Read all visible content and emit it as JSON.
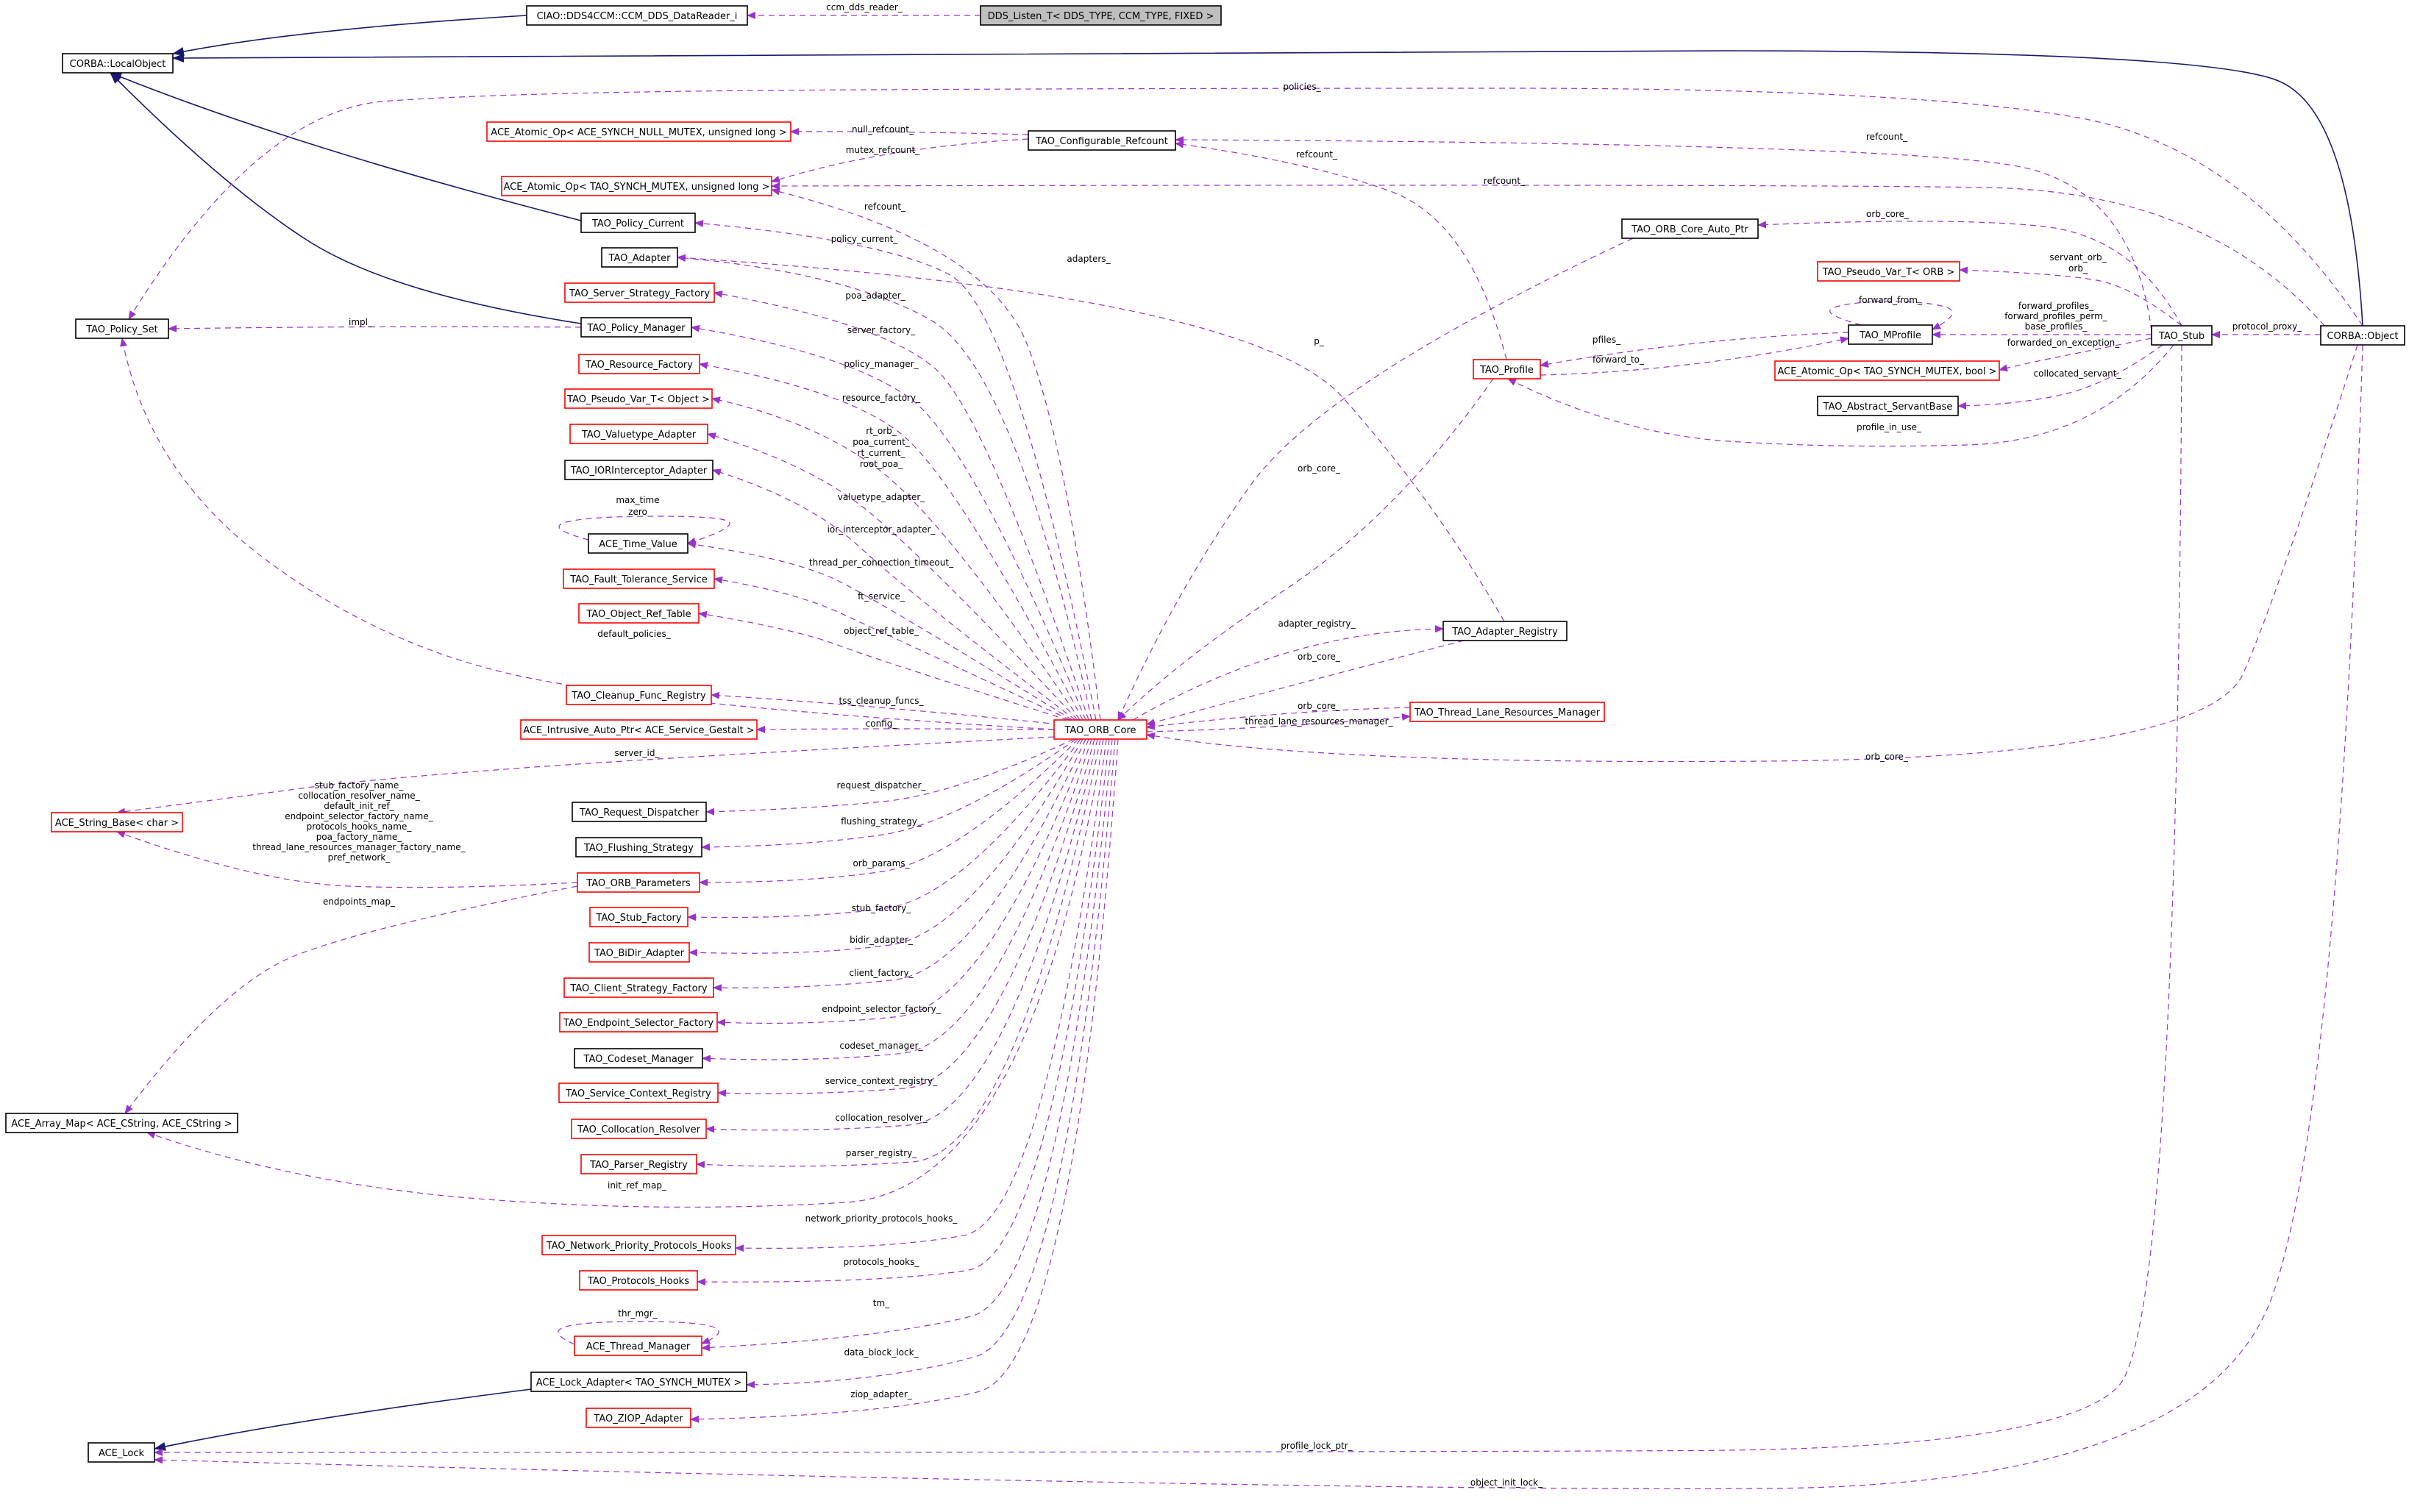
{
  "diagram": {
    "colors": {
      "usage_edge": "#9a32cd",
      "inheritance_edge": "#191970",
      "documented_border": "#000000",
      "undocumented_border": "#ff0000",
      "focus_fill": "#bfbfbf"
    },
    "nodes": [
      {
        "id": "dds_listen",
        "label": "DDS_Listen_T< DDS_TYPE, CCM_TYPE, FIXED >",
        "style": "focus"
      },
      {
        "id": "ciao_reader",
        "label": "CIAO::DDS4CCM::CCM_DDS_DataReader_i",
        "style": "black"
      },
      {
        "id": "local_object",
        "label": "CORBA::LocalObject",
        "style": "black"
      },
      {
        "id": "atomic_null",
        "label": "ACE_Atomic_Op< ACE_SYNCH_NULL_MUTEX, unsigned long >",
        "style": "red"
      },
      {
        "id": "configurable_refcount",
        "label": "TAO_Configurable_Refcount",
        "style": "black"
      },
      {
        "id": "atomic_mutex",
        "label": "ACE_Atomic_Op< TAO_SYNCH_MUTEX, unsigned long >",
        "style": "red"
      },
      {
        "id": "policy_current",
        "label": "TAO_Policy_Current",
        "style": "black"
      },
      {
        "id": "adapter",
        "label": "TAO_Adapter",
        "style": "black"
      },
      {
        "id": "server_strategy_factory",
        "label": "TAO_Server_Strategy_Factory",
        "style": "red"
      },
      {
        "id": "policy_set",
        "label": "TAO_Policy_Set",
        "style": "black"
      },
      {
        "id": "policy_manager",
        "label": "TAO_Policy_Manager",
        "style": "black"
      },
      {
        "id": "resource_factory",
        "label": "TAO_Resource_Factory",
        "style": "red"
      },
      {
        "id": "pseudo_var_object",
        "label": "TAO_Pseudo_Var_T< Object >",
        "style": "red"
      },
      {
        "id": "valuetype_adapter",
        "label": "TAO_Valuetype_Adapter",
        "style": "red"
      },
      {
        "id": "ior_interceptor_adapter",
        "label": "TAO_IORInterceptor_Adapter",
        "style": "black"
      },
      {
        "id": "time_value",
        "label": "ACE_Time_Value",
        "style": "black"
      },
      {
        "id": "fault_tolerance",
        "label": "TAO_Fault_Tolerance_Service",
        "style": "red"
      },
      {
        "id": "object_ref_table",
        "label": "TAO_Object_Ref_Table",
        "style": "red"
      },
      {
        "id": "cleanup_func_registry",
        "label": "TAO_Cleanup_Func_Registry",
        "style": "red"
      },
      {
        "id": "intrusive_auto_ptr",
        "label": "ACE_Intrusive_Auto_Ptr< ACE_Service_Gestalt >",
        "style": "red"
      },
      {
        "id": "orb_core",
        "label": "TAO_ORB_Core",
        "style": "red"
      },
      {
        "id": "string_base",
        "label": "ACE_String_Base< char >",
        "style": "red"
      },
      {
        "id": "request_dispatcher",
        "label": "TAO_Request_Dispatcher",
        "style": "black"
      },
      {
        "id": "flushing_strategy",
        "label": "TAO_Flushing_Strategy",
        "style": "black"
      },
      {
        "id": "orb_parameters",
        "label": "TAO_ORB_Parameters",
        "style": "red"
      },
      {
        "id": "stub_factory",
        "label": "TAO_Stub_Factory",
        "style": "red"
      },
      {
        "id": "bidir_adapter",
        "label": "TAO_BiDir_Adapter",
        "style": "red"
      },
      {
        "id": "client_strategy_factory",
        "label": "TAO_Client_Strategy_Factory",
        "style": "red"
      },
      {
        "id": "endpoint_selector_factory",
        "label": "TAO_Endpoint_Selector_Factory",
        "style": "red"
      },
      {
        "id": "codeset_manager",
        "label": "TAO_Codeset_Manager",
        "style": "black"
      },
      {
        "id": "service_context_registry",
        "label": "TAO_Service_Context_Registry",
        "style": "red"
      },
      {
        "id": "collocation_resolver",
        "label": "TAO_Collocation_Resolver",
        "style": "red"
      },
      {
        "id": "array_map",
        "label": "ACE_Array_Map< ACE_CString, ACE_CString >",
        "style": "black"
      },
      {
        "id": "parser_registry",
        "label": "TAO_Parser_Registry",
        "style": "red"
      },
      {
        "id": "network_priority_hooks",
        "label": "TAO_Network_Priority_Protocols_Hooks",
        "style": "red"
      },
      {
        "id": "protocols_hooks",
        "label": "TAO_Protocols_Hooks",
        "style": "red"
      },
      {
        "id": "thread_manager",
        "label": "ACE_Thread_Manager",
        "style": "red"
      },
      {
        "id": "lock_adapter",
        "label": "ACE_Lock_Adapter< TAO_SYNCH_MUTEX >",
        "style": "black"
      },
      {
        "id": "ziop_adapter",
        "label": "TAO_ZIOP_Adapter",
        "style": "red"
      },
      {
        "id": "ace_lock",
        "label": "ACE_Lock",
        "style": "black"
      },
      {
        "id": "orb_core_auto_ptr",
        "label": "TAO_ORB_Core_Auto_Ptr",
        "style": "black"
      },
      {
        "id": "pseudo_var_orb",
        "label": "TAO_Pseudo_Var_T< ORB >",
        "style": "red"
      },
      {
        "id": "mprofile",
        "label": "TAO_MProfile",
        "style": "black"
      },
      {
        "id": "profile",
        "label": "TAO_Profile",
        "style": "red"
      },
      {
        "id": "atomic_bool",
        "label": "ACE_Atomic_Op< TAO_SYNCH_MUTEX, bool >",
        "style": "red"
      },
      {
        "id": "abstract_servant_base",
        "label": "TAO_Abstract_ServantBase",
        "style": "black"
      },
      {
        "id": "stub",
        "label": "TAO_Stub",
        "style": "black"
      },
      {
        "id": "corba_object",
        "label": "CORBA::Object",
        "style": "black"
      },
      {
        "id": "adapter_registry",
        "label": "TAO_Adapter_Registry",
        "style": "black"
      },
      {
        "id": "thread_lane_resources_manager",
        "label": "TAO_Thread_Lane_Resources_Manager",
        "style": "red"
      }
    ],
    "edges": [
      {
        "id": "e_ccm_dds_reader",
        "type": "usage",
        "from": "ciao_reader",
        "to": "dds_listen",
        "label": [
          "ccm_dds_reader_"
        ]
      },
      {
        "id": "e_inh_reader",
        "type": "inheritance",
        "from": "ciao_reader",
        "to": "local_object",
        "label": []
      },
      {
        "id": "e_inh_obj",
        "type": "inheritance",
        "from": "corba_object",
        "to": "local_object",
        "label": []
      },
      {
        "id": "e_inh_pcur",
        "type": "inheritance",
        "from": "policy_current",
        "to": "local_object",
        "label": []
      },
      {
        "id": "e_inh_pman",
        "type": "inheritance",
        "from": "policy_manager",
        "to": "local_object",
        "label": []
      },
      {
        "id": "e_inh_lockad",
        "type": "inheritance",
        "from": "lock_adapter",
        "to": "ace_lock",
        "label": []
      },
      {
        "id": "e_policies",
        "type": "usage",
        "from": "corba_object",
        "to": "policy_set",
        "label": [
          "policies_"
        ]
      },
      {
        "id": "e_null_refcount",
        "type": "usage",
        "from": "configurable_refcount",
        "to": "atomic_null",
        "label": [
          "null_refcount_"
        ]
      },
      {
        "id": "e_mutex_refcount",
        "type": "usage",
        "from": "configurable_refcount",
        "to": "atomic_mutex",
        "label": [
          "mutex_refcount_"
        ]
      },
      {
        "id": "e_refcount_orb",
        "type": "usage",
        "from": "orb_core",
        "to": "atomic_mutex",
        "label": [
          "refcount_"
        ]
      },
      {
        "id": "e_refcount_obj",
        "type": "usage",
        "from": "corba_object",
        "to": "atomic_mutex",
        "label": [
          "refcount_"
        ]
      },
      {
        "id": "e_refcount_stub",
        "type": "usage",
        "from": "stub",
        "to": "configurable_refcount",
        "label": [
          "refcount_"
        ]
      },
      {
        "id": "e_refcount_prof",
        "type": "usage",
        "from": "profile",
        "to": "configurable_refcount",
        "label": [
          "refcount_"
        ]
      },
      {
        "id": "e_impl",
        "type": "usage",
        "from": "policy_manager",
        "to": "policy_set",
        "label": [
          "impl_"
        ]
      },
      {
        "id": "e_default_policies",
        "type": "usage",
        "from": "orb_core",
        "to": "policy_set",
        "label": [
          "default_policies_"
        ]
      },
      {
        "id": "e_policy_current",
        "type": "usage",
        "from": "orb_core",
        "to": "policy_current",
        "label": [
          "policy_current_"
        ]
      },
      {
        "id": "e_adapters",
        "type": "usage",
        "from": "adapter_registry",
        "to": "adapter",
        "label": [
          "adapters_"
        ]
      },
      {
        "id": "e_poa_adapter",
        "type": "usage",
        "from": "orb_core",
        "to": "adapter",
        "label": [
          "poa_adapter_"
        ]
      },
      {
        "id": "e_server_factory",
        "type": "usage",
        "from": "orb_core",
        "to": "server_strategy_factory",
        "label": [
          "server_factory_"
        ]
      },
      {
        "id": "e_policy_manager",
        "type": "usage",
        "from": "orb_core",
        "to": "policy_manager",
        "label": [
          "policy_manager_"
        ]
      },
      {
        "id": "e_resource_factory",
        "type": "usage",
        "from": "orb_core",
        "to": "resource_factory",
        "label": [
          "resource_factory_"
        ]
      },
      {
        "id": "e_rt_orb",
        "type": "usage",
        "from": "orb_core",
        "to": "pseudo_var_object",
        "label": [
          "rt_orb_",
          "poa_current_",
          "rt_current_",
          "root_poa_"
        ]
      },
      {
        "id": "e_valuetype",
        "type": "usage",
        "from": "orb_core",
        "to": "valuetype_adapter",
        "label": [
          "valuetype_adapter_"
        ]
      },
      {
        "id": "e_ior",
        "type": "usage",
        "from": "orb_core",
        "to": "ior_interceptor_adapter",
        "label": [
          "ior_interceptor_adapter_"
        ]
      },
      {
        "id": "e_max_time",
        "type": "usage",
        "from": "time_value",
        "to": "time_value",
        "label": [
          "max_time",
          "zero"
        ]
      },
      {
        "id": "e_thread_timeout",
        "type": "usage",
        "from": "orb_core",
        "to": "time_value",
        "label": [
          "thread_per_connection_timeout_"
        ]
      },
      {
        "id": "e_ft_service",
        "type": "usage",
        "from": "orb_core",
        "to": "fault_tolerance",
        "label": [
          "ft_service_"
        ]
      },
      {
        "id": "e_object_ref_table",
        "type": "usage",
        "from": "orb_core",
        "to": "object_ref_table",
        "label": [
          "object_ref_table_"
        ]
      },
      {
        "id": "e_tss_cleanup",
        "type": "usage",
        "from": "orb_core",
        "to": "cleanup_func_registry",
        "label": [
          "tss_cleanup_funcs_"
        ]
      },
      {
        "id": "e_config",
        "type": "usage",
        "from": "orb_core",
        "to": "intrusive_auto_ptr",
        "label": [
          "config_"
        ]
      },
      {
        "id": "e_server_id",
        "type": "usage",
        "from": "orb_core",
        "to": "string_base",
        "label": [
          "server_id_"
        ]
      },
      {
        "id": "e_params_strings",
        "type": "usage",
        "from": "orb_parameters",
        "to": "string_base",
        "label": [
          "stub_factory_name_",
          "collocation_resolver_name_",
          "default_init_ref_",
          "endpoint_selector_factory_name_",
          "protocols_hooks_name_",
          "poa_factory_name_",
          "thread_lane_resources_manager_factory_name_",
          "pref_network_"
        ]
      },
      {
        "id": "e_endpoints_map",
        "type": "usage",
        "from": "orb_parameters",
        "to": "array_map",
        "label": [
          "endpoints_map_"
        ]
      },
      {
        "id": "e_request_dispatcher",
        "type": "usage",
        "from": "orb_core",
        "to": "request_dispatcher",
        "label": [
          "request_dispatcher_"
        ]
      },
      {
        "id": "e_flushing",
        "type": "usage",
        "from": "orb_core",
        "to": "flushing_strategy",
        "label": [
          "flushing_strategy_"
        ]
      },
      {
        "id": "e_orb_params",
        "type": "usage",
        "from": "orb_core",
        "to": "orb_parameters",
        "label": [
          "orb_params_"
        ]
      },
      {
        "id": "e_stub_factory",
        "type": "usage",
        "from": "orb_core",
        "to": "stub_factory",
        "label": [
          "stub_factory_"
        ]
      },
      {
        "id": "e_bidir",
        "type": "usage",
        "from": "orb_core",
        "to": "bidir_adapter",
        "label": [
          "bidir_adapter_"
        ]
      },
      {
        "id": "e_client_factory",
        "type": "usage",
        "from": "orb_core",
        "to": "client_strategy_factory",
        "label": [
          "client_factory_"
        ]
      },
      {
        "id": "e_endpoint_selector",
        "type": "usage",
        "from": "orb_core",
        "to": "endpoint_selector_factory",
        "label": [
          "endpoint_selector_factory_"
        ]
      },
      {
        "id": "e_codeset",
        "type": "usage",
        "from": "orb_core",
        "to": "codeset_manager",
        "label": [
          "codeset_manager_"
        ]
      },
      {
        "id": "e_service_context",
        "type": "usage",
        "from": "orb_core",
        "to": "service_context_registry",
        "label": [
          "service_context_registry_"
        ]
      },
      {
        "id": "e_collocation",
        "type": "usage",
        "from": "orb_core",
        "to": "collocation_resolver",
        "label": [
          "collocation_resolver_"
        ]
      },
      {
        "id": "e_parser",
        "type": "usage",
        "from": "orb_core",
        "to": "parser_registry",
        "label": [
          "parser_registry_"
        ]
      },
      {
        "id": "e_init_ref_map",
        "type": "usage",
        "from": "orb_core",
        "to": "array_map",
        "label": [
          "init_ref_map_"
        ]
      },
      {
        "id": "e_network_priority",
        "type": "usage",
        "from": "orb_core",
        "to": "network_priority_hooks",
        "label": [
          "network_priority_protocols_hooks_"
        ]
      },
      {
        "id": "e_protocols_hooks",
        "type": "usage",
        "from": "orb_core",
        "to": "protocols_hooks",
        "label": [
          "protocols_hooks_"
        ]
      },
      {
        "id": "e_thr_mgr",
        "type": "usage",
        "from": "thread_manager",
        "to": "thread_manager",
        "label": [
          "thr_mgr_"
        ]
      },
      {
        "id": "e_tm",
        "type": "usage",
        "from": "orb_core",
        "to": "thread_manager",
        "label": [
          "tm_"
        ]
      },
      {
        "id": "e_data_block_lock",
        "type": "usage",
        "from": "orb_core",
        "to": "lock_adapter",
        "label": [
          "data_block_lock_"
        ]
      },
      {
        "id": "e_ziop",
        "type": "usage",
        "from": "orb_core",
        "to": "ziop_adapter",
        "label": [
          "ziop_adapter_"
        ]
      },
      {
        "id": "e_profile_lock_ptr",
        "type": "usage",
        "from": "stub",
        "to": "ace_lock",
        "label": [
          "profile_lock_ptr_"
        ]
      },
      {
        "id": "e_object_init_lock",
        "type": "usage",
        "from": "corba_object",
        "to": "ace_lock",
        "label": [
          "object_init_lock_"
        ]
      },
      {
        "id": "e_orb_core_stub",
        "type": "usage",
        "from": "stub",
        "to": "orb_core_auto_ptr",
        "label": [
          "orb_core_"
        ]
      },
      {
        "id": "e_p",
        "type": "usage",
        "from": "orb_core_auto_ptr",
        "to": "orb_core",
        "label": [
          "p_"
        ]
      },
      {
        "id": "e_servant_orb",
        "type": "usage",
        "from": "stub",
        "to": "pseudo_var_orb",
        "label": [
          "servant_orb_",
          "orb_"
        ]
      },
      {
        "id": "e_forward_from",
        "type": "usage",
        "from": "mprofile",
        "to": "mprofile",
        "label": [
          "forward_from_"
        ]
      },
      {
        "id": "e_forward_profiles",
        "type": "usage",
        "from": "stub",
        "to": "mprofile",
        "label": [
          "forward_profiles_",
          "forward_profiles_perm_",
          "base_profiles_"
        ]
      },
      {
        "id": "e_forwarded_on_exception",
        "type": "usage",
        "from": "stub",
        "to": "atomic_bool",
        "label": [
          "forwarded_on_exception_"
        ]
      },
      {
        "id": "e_collocated_servant",
        "type": "usage",
        "from": "stub",
        "to": "abstract_servant_base",
        "label": [
          "collocated_servant_"
        ]
      },
      {
        "id": "e_profile_in_use",
        "type": "usage",
        "from": "stub",
        "to": "profile",
        "label": [
          "profile_in_use_"
        ]
      },
      {
        "id": "e_pfiles",
        "type": "usage",
        "from": "mprofile",
        "to": "profile",
        "label": [
          "pfiles_"
        ]
      },
      {
        "id": "e_forward_to",
        "type": "usage",
        "from": "profile",
        "to": "mprofile",
        "label": [
          "forward_to_"
        ]
      },
      {
        "id": "e_orb_core_profile",
        "type": "usage",
        "from": "profile",
        "to": "orb_core",
        "label": [
          "orb_core_"
        ]
      },
      {
        "id": "e_protocol_proxy",
        "type": "usage",
        "from": "corba_object",
        "to": "stub",
        "label": [
          "protocol_proxy_"
        ]
      },
      {
        "id": "e_adapter_registry",
        "type": "usage",
        "from": "orb_core",
        "to": "adapter_registry",
        "label": [
          "adapter_registry_"
        ]
      },
      {
        "id": "e_orb_core_areg",
        "type": "usage",
        "from": "adapter_registry",
        "to": "orb_core",
        "label": [
          "orb_core_"
        ]
      },
      {
        "id": "e_orb_core_tlrm",
        "type": "usage",
        "from": "thread_lane_resources_manager",
        "to": "orb_core",
        "label": [
          "orb_core_"
        ]
      },
      {
        "id": "e_thread_lane",
        "type": "usage",
        "from": "orb_core",
        "to": "thread_lane_resources_manager",
        "label": [
          "thread_lane_resources_manager_"
        ]
      },
      {
        "id": "e_orb_core_obj",
        "type": "usage",
        "from": "corba_object",
        "to": "orb_core",
        "label": [
          "orb_core_"
        ]
      }
    ]
  }
}
